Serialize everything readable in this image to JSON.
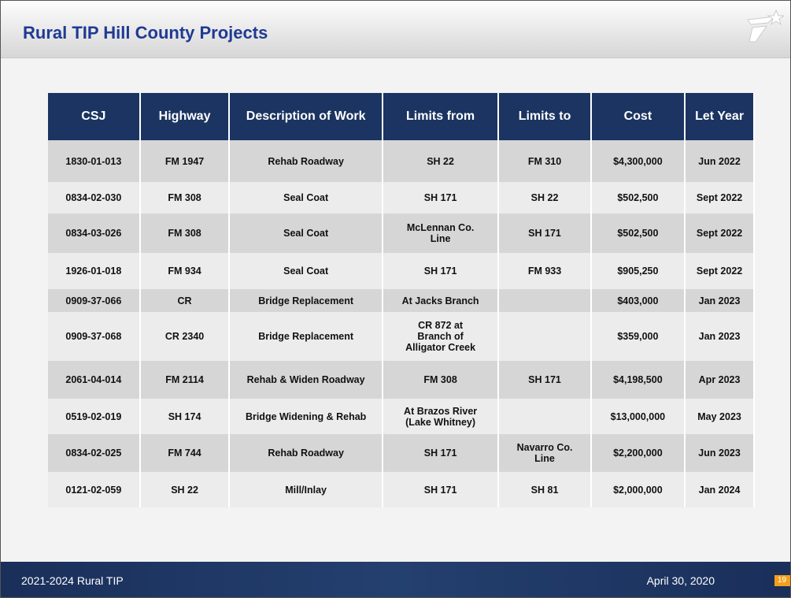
{
  "header": {
    "title": "Rural TIP Hill County Projects"
  },
  "table": {
    "columns": [
      "CSJ",
      "Highway",
      "Description of Work",
      "Limits from",
      "Limits to",
      "Cost",
      "Let Year"
    ],
    "rows": [
      [
        "1830-01-013",
        "FM 1947",
        "Rehab Roadway",
        "SH 22",
        "FM 310",
        "$4,300,000",
        "Jun 2022"
      ],
      [
        "0834-02-030",
        "FM 308",
        "Seal Coat",
        "SH 171",
        "SH 22",
        "$502,500",
        "Sept 2022"
      ],
      [
        "0834-03-026",
        "FM 308",
        "Seal Coat",
        "McLennan Co.\nLine",
        "SH 171",
        "$502,500",
        "Sept 2022"
      ],
      [
        "1926-01-018",
        "FM 934",
        "Seal Coat",
        "SH 171",
        "FM 933",
        "$905,250",
        "Sept 2022"
      ],
      [
        "0909-37-066",
        "CR",
        "Bridge Replacement",
        "At Jacks Branch",
        null,
        "$403,000",
        "Jan 2023"
      ],
      [
        "0909-37-068",
        "CR 2340",
        "Bridge Replacement",
        "CR 872 at\nBranch of\nAlligator Creek",
        null,
        "$359,000",
        "Jan 2023"
      ],
      [
        "2061-04-014",
        "FM 2114",
        "Rehab & Widen Roadway",
        "FM 308",
        "SH 171",
        "$4,198,500",
        "Apr 2023"
      ],
      [
        "0519-02-019",
        "SH 174",
        "Bridge Widening & Rehab",
        "At Brazos River\n(Lake Whitney)",
        null,
        "$13,000,000",
        "May 2023"
      ],
      [
        "0834-02-025",
        "FM 744",
        "Rehab Roadway",
        "SH 171",
        "Navarro Co.\nLine",
        "$2,200,000",
        "Jun 2023"
      ],
      [
        "0121-02-059",
        "SH 22",
        "Mill/Inlay",
        "SH 171",
        "SH 81",
        "$2,000,000",
        "Jan 2024"
      ]
    ]
  },
  "footer": {
    "left": "2021-2024 Rural TIP",
    "date": "April 30, 2020",
    "page": "19"
  }
}
